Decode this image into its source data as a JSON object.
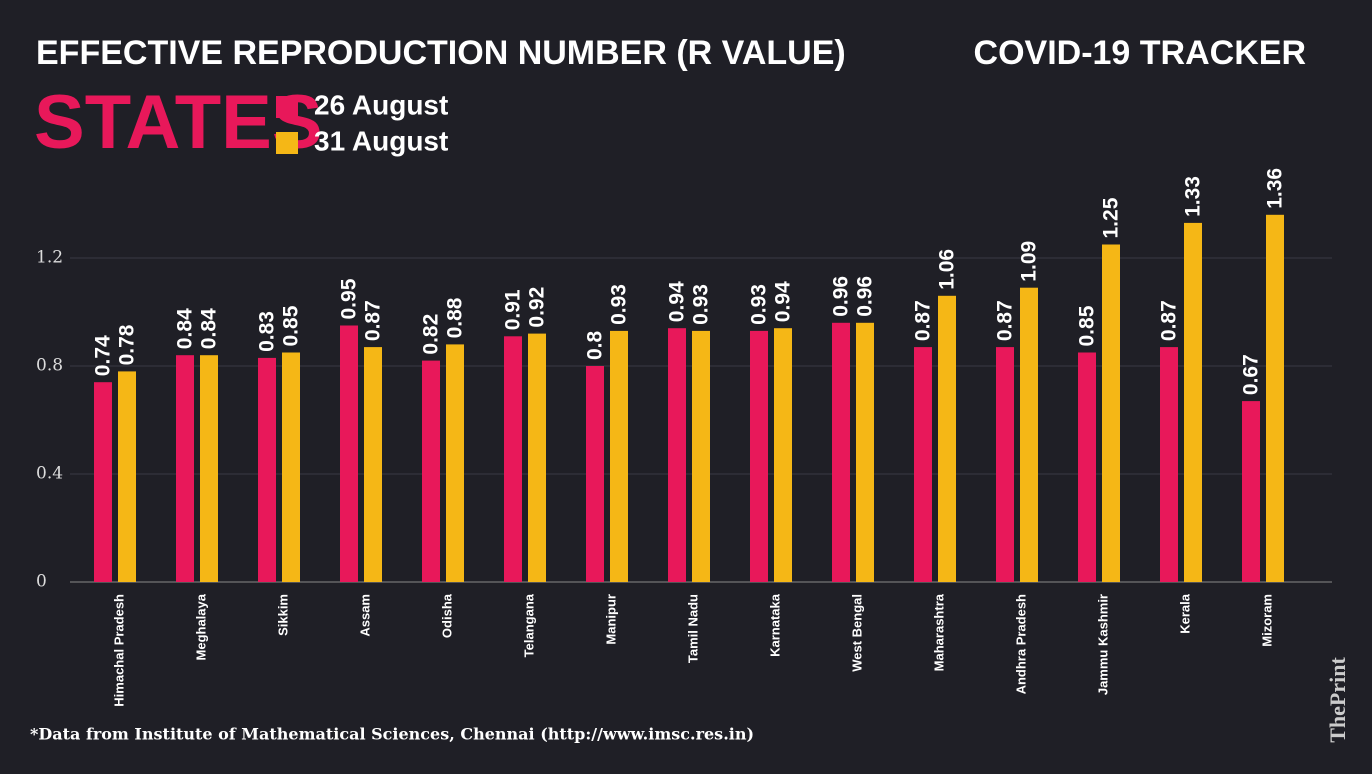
{
  "chart_data": {
    "type": "bar",
    "title": "EFFECTIVE REPRODUCTION NUMBER (R VALUE)",
    "subtitle": "STATES",
    "tracker": "COVID-19 TRACKER",
    "footnote": "*Data from Institute of Mathematical Sciences, Chennai (http://www.imsc.res.in)",
    "brand": "ThePrint",
    "categories": [
      "Himachal Pradesh",
      "Meghalaya",
      "Sikkim",
      "Assam",
      "Odisha",
      "Telangana",
      "Manipur",
      "Tamil Nadu",
      "Karnataka",
      "West Bengal",
      "Maharashtra",
      "Andhra Pradesh",
      "Jammu Kashmir",
      "Kerala",
      "Mizoram"
    ],
    "series": [
      {
        "name": "26 August",
        "color": "#e8185a",
        "values": [
          0.74,
          0.84,
          0.83,
          0.95,
          0.82,
          0.91,
          0.8,
          0.94,
          0.93,
          0.96,
          0.87,
          0.87,
          0.85,
          0.87,
          0.67
        ]
      },
      {
        "name": "31 August",
        "color": "#f5b716",
        "values": [
          0.78,
          0.84,
          0.85,
          0.87,
          0.88,
          0.92,
          0.93,
          0.93,
          0.94,
          0.96,
          1.06,
          1.09,
          1.25,
          1.33,
          1.36
        ]
      }
    ],
    "ylim": [
      0,
      1.5
    ],
    "yticks": [
      0,
      0.4,
      0.8,
      1.2
    ],
    "grid": true
  }
}
